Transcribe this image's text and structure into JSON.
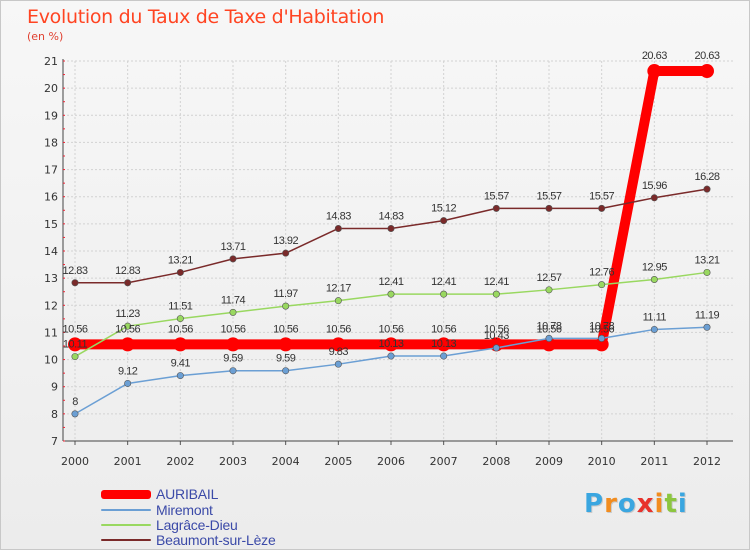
{
  "title": "Evolution du Taux de Taxe d'Habitation",
  "unit_label": "(en %)",
  "chart_data": {
    "type": "line",
    "x": [
      "2000",
      "2001",
      "2002",
      "2003",
      "2004",
      "2005",
      "2006",
      "2007",
      "2008",
      "2009",
      "2010",
      "2011",
      "2012"
    ],
    "ylim": [
      7,
      21
    ],
    "yticks": [
      7,
      8,
      9,
      10,
      11,
      12,
      13,
      14,
      15,
      16,
      17,
      18,
      19,
      20,
      21
    ],
    "grid": true,
    "legend_position": "bottom-left",
    "series": [
      {
        "name": "AURIBAIL",
        "color": "#ff0000",
        "values": [
          10.56,
          10.56,
          10.56,
          10.56,
          10.56,
          10.56,
          10.56,
          10.56,
          10.56,
          10.56,
          10.56,
          20.63,
          20.63
        ],
        "labels": [
          "10.56",
          "10.56",
          "10.56",
          "10.56",
          "10.56",
          "10.56",
          "10.56",
          "10.56",
          "10.56",
          "10.56",
          "10.56",
          "20.63",
          "20.63"
        ]
      },
      {
        "name": "Miremont",
        "color": "#6b9fd4",
        "values": [
          8,
          9.12,
          9.41,
          9.59,
          9.59,
          9.83,
          10.13,
          10.13,
          10.43,
          10.78,
          10.78,
          11.11,
          11.19
        ],
        "labels": [
          "8",
          "9.12",
          "9.41",
          "9.59",
          "9.59",
          "9.83",
          "10.13",
          "10.13",
          "10.43",
          "10.78",
          "10.78",
          "11.11",
          "11.19"
        ]
      },
      {
        "name": "Lagrâce-Dieu",
        "color": "#99d860",
        "values": [
          10.11,
          11.23,
          11.51,
          11.74,
          11.97,
          12.17,
          12.41,
          12.41,
          12.41,
          12.57,
          12.76,
          12.95,
          13.21
        ],
        "labels": [
          "10.11",
          "11.23",
          "11.51",
          "11.74",
          "11.97",
          "12.17",
          "12.41",
          "12.41",
          "12.41",
          "12.57",
          "12.76",
          "12.95",
          "13.21"
        ]
      },
      {
        "name": "Beaumont-sur-Lèze",
        "color": "#7a2a2a",
        "values": [
          12.83,
          12.83,
          13.21,
          13.71,
          13.92,
          14.83,
          14.83,
          15.12,
          15.57,
          15.57,
          15.57,
          15.96,
          16.28
        ],
        "labels": [
          "12.83",
          "12.83",
          "13.21",
          "13.71",
          "13.92",
          "14.83",
          "14.83",
          "15.12",
          "15.57",
          "15.57",
          "15.57",
          "15.96",
          "16.28"
        ]
      }
    ]
  },
  "logo": {
    "letters": [
      "P",
      "r",
      "o",
      "x",
      "i",
      "t",
      "i"
    ],
    "colors": [
      "#3aa6e0",
      "#f28c1e",
      "#3aa6e0",
      "#e8322c",
      "#f28c1e",
      "#8cc63f",
      "#3aa6e0"
    ]
  }
}
